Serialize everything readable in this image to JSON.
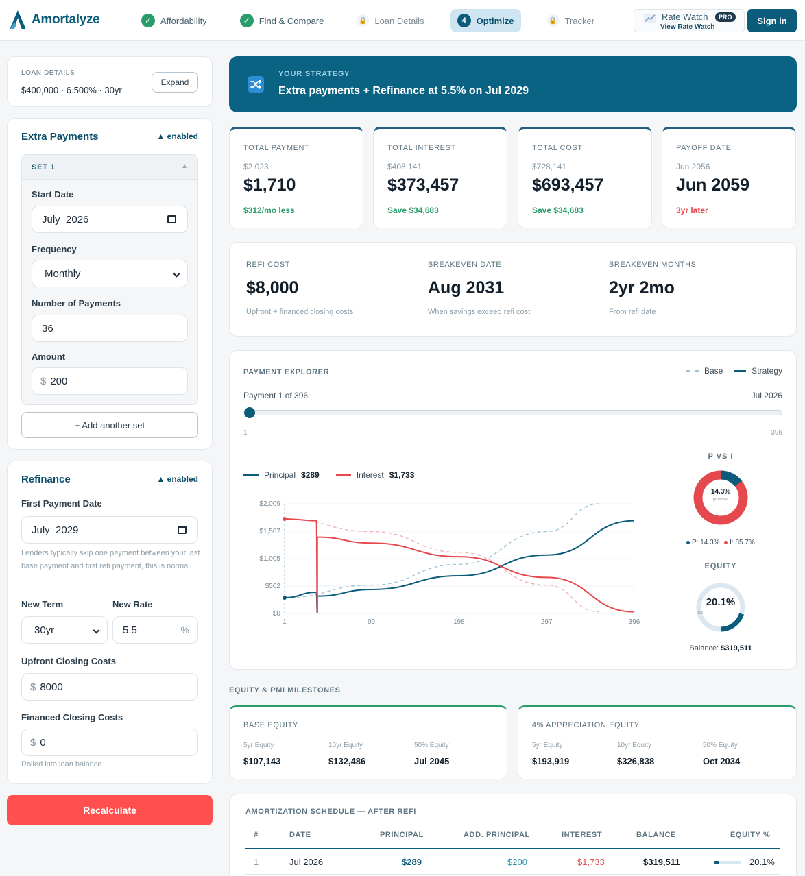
{
  "app": {
    "name": "Amortalyze"
  },
  "steps": [
    {
      "label": "Affordability",
      "state": "done"
    },
    {
      "label": "Find & Compare",
      "state": "done"
    },
    {
      "label": "Loan Details",
      "state": "locked"
    },
    {
      "label": "Optimize",
      "state": "active",
      "number": "4"
    },
    {
      "label": "Tracker",
      "state": "locked"
    }
  ],
  "rate_watch": {
    "title": "Rate Watch",
    "badge": "PRO",
    "link": "View Rate Watch"
  },
  "sign_in": "Sign in",
  "loan_details": {
    "label": "LOAN DETAILS",
    "summary": "$400,000 · 6.500% · 30yr",
    "expand": "Expand"
  },
  "extra_payments": {
    "title": "Extra Payments",
    "status": "▲ enabled",
    "set_label": "SET 1",
    "start_date_label": "Start Date",
    "start_date": "July  2026",
    "frequency_label": "Frequency",
    "frequency": "Monthly",
    "num_payments_label": "Number of Payments",
    "num_payments": "36",
    "amount_label": "Amount",
    "amount_prefix": "$",
    "amount": "200",
    "add_set": "+ Add another set"
  },
  "refinance": {
    "title": "Refinance",
    "status": "▲ enabled",
    "first_payment_label": "First Payment Date",
    "first_payment": "July  2029",
    "hint": "Lenders typically skip one payment between your last base payment and first refi payment, this is normal.",
    "new_term_label": "New Term",
    "new_term": "30yr",
    "new_rate_label": "New Rate",
    "new_rate": "5.5",
    "rate_suffix": "%",
    "upfront_label": "Upfront Closing Costs",
    "upfront_prefix": "$",
    "upfront": "8000",
    "financed_label": "Financed Closing Costs",
    "financed_prefix": "$",
    "financed": "0",
    "financed_hint": "Rolled into loan balance"
  },
  "recalculate": "Recalculate",
  "strategy": {
    "label": "YOUR STRATEGY",
    "title": "Extra payments + Refinance at 5.5% on Jul 2029"
  },
  "stats": [
    {
      "label": "TOTAL PAYMENT",
      "old": "$2,023",
      "value": "$1,710",
      "delta": "$312/mo less",
      "tone": "good"
    },
    {
      "label": "TOTAL INTEREST",
      "old": "$408,141",
      "value": "$373,457",
      "delta": "Save $34,683",
      "tone": "good"
    },
    {
      "label": "TOTAL COST",
      "old": "$728,141",
      "value": "$693,457",
      "delta": "Save $34,683",
      "tone": "good"
    },
    {
      "label": "PAYOFF DATE",
      "old": "Jun 2056",
      "value": "Jun 2059",
      "delta": "3yr later",
      "tone": "bad"
    }
  ],
  "refi_stats": [
    {
      "label": "REFI COST",
      "value": "$8,000",
      "sub": "Upfront + financed closing costs"
    },
    {
      "label": "BREAKEVEN DATE",
      "value": "Aug 2031",
      "sub": "When savings exceed refi cost"
    },
    {
      "label": "BREAKEVEN MONTHS",
      "value": "2yr 2mo",
      "sub": "From refi date"
    }
  ],
  "explorer": {
    "label": "PAYMENT EXPLORER",
    "legend_base": "Base",
    "legend_strategy": "Strategy",
    "payment_text": "Payment 1 of 396",
    "payment_date": "Jul 2026",
    "slider_min": "1",
    "slider_max": "396",
    "slider_value": 1,
    "principal_label": "Principal",
    "principal_value": "$289",
    "interest_label": "Interest",
    "interest_value": "$1,733",
    "pvi_title": "P VS I",
    "pvi_pct": "14.3%",
    "pvi_sub": "principal",
    "pvi_fraction": 0.143,
    "pvi_legend_p": "P: 14.3%",
    "pvi_legend_i": "I: 85.7%",
    "equity_title": "EQUITY",
    "equity_pct": "20.1%",
    "equity_fraction": 0.201,
    "equity_min": "0",
    "equity_max": "100",
    "balance_label": "Balance:",
    "balance_value": "$319,511"
  },
  "colors": {
    "principal": "#0b5c7a",
    "interest": "#e5484d",
    "base_principal": "#9ec1d6",
    "base_interest": "#f2aeb0",
    "primary": "#0b5c7a",
    "good": "#2a9d6b",
    "bad": "#e5484d"
  },
  "chart_data": {
    "type": "line",
    "xlabel": "",
    "ylabel": "",
    "x_ticks": [
      1,
      99,
      198,
      297,
      396
    ],
    "y_ticks": [
      "$0",
      "$502",
      "$1,005",
      "$1,507",
      "$2,009"
    ],
    "xlim": [
      1,
      396
    ],
    "ylim": [
      0,
      2009
    ],
    "grid": true,
    "refi_payment": 38,
    "series": [
      {
        "name": "Principal",
        "style": "strategy",
        "points": [
          [
            1,
            289
          ],
          [
            37,
            389
          ],
          [
            38,
            0
          ],
          [
            38,
            318
          ],
          [
            99,
            440
          ],
          [
            198,
            690
          ],
          [
            297,
            1070
          ],
          [
            396,
            1700
          ]
        ]
      },
      {
        "name": "Interest",
        "style": "strategy",
        "points": [
          [
            1,
            1733
          ],
          [
            37,
            1700
          ],
          [
            38,
            0
          ],
          [
            38,
            1400
          ],
          [
            99,
            1290
          ],
          [
            198,
            1040
          ],
          [
            297,
            660
          ],
          [
            396,
            30
          ]
        ]
      },
      {
        "name": "Principal",
        "style": "base",
        "points": [
          [
            1,
            289
          ],
          [
            99,
            520
          ],
          [
            198,
            900
          ],
          [
            297,
            1500
          ],
          [
            356,
            2009
          ]
        ]
      },
      {
        "name": "Interest",
        "style": "base",
        "points": [
          [
            1,
            1733
          ],
          [
            99,
            1500
          ],
          [
            198,
            1120
          ],
          [
            297,
            520
          ],
          [
            356,
            30
          ]
        ]
      }
    ]
  },
  "milestones": {
    "title": "EQUITY & PMI MILESTONES",
    "base": {
      "label": "BASE EQUITY",
      "items": [
        {
          "l": "5yr Equity",
          "v": "$107,143"
        },
        {
          "l": "10yr Equity",
          "v": "$132,486"
        },
        {
          "l": "50% Equity",
          "v": "Jul 2045"
        }
      ]
    },
    "appreciation": {
      "label": "4% APPRECIATION EQUITY",
      "items": [
        {
          "l": "5yr Equity",
          "v": "$193,919"
        },
        {
          "l": "10yr Equity",
          "v": "$326,838"
        },
        {
          "l": "50% Equity",
          "v": "Oct 2034"
        }
      ]
    }
  },
  "schedule": {
    "title": "AMORTIZATION SCHEDULE — AFTER REFI",
    "headers": [
      "#",
      "DATE",
      "PRINCIPAL",
      "ADD. PRINCIPAL",
      "INTEREST",
      "BALANCE",
      "EQUITY %"
    ],
    "rows": [
      {
        "n": "1",
        "date": "Jul 2026",
        "principal": "$289",
        "add": "$200",
        "interest": "$1,733",
        "balance": "$319,511",
        "equity": "20.1%",
        "equity_fraction": 0.201
      }
    ]
  }
}
